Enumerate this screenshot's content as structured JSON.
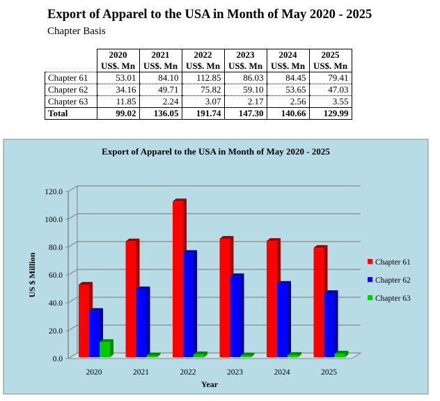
{
  "header": {
    "title": "Export of Apparel to the USA in Month of May 2020 - 2025",
    "subtitle": "Chapter Basis"
  },
  "table": {
    "years": [
      "2020",
      "2021",
      "2022",
      "2023",
      "2024",
      "2025"
    ],
    "unit": "US$. Mn",
    "rows": [
      {
        "label": "Chapter 61",
        "values": [
          "53.01",
          "84.10",
          "112.85",
          "86.03",
          "84.45",
          "79.41"
        ]
      },
      {
        "label": "Chapter 62",
        "values": [
          "34.16",
          "49.71",
          "75.82",
          "59.10",
          "53.65",
          "47.03"
        ]
      },
      {
        "label": "Chapter 63",
        "values": [
          "11.85",
          "2.24",
          "3.07",
          "2.17",
          "2.56",
          "3.55"
        ]
      },
      {
        "label": "Total",
        "values": [
          "99.02",
          "136.05",
          "191.74",
          "147.30",
          "140.66",
          "129.99"
        ]
      }
    ]
  },
  "chart_data": {
    "type": "bar",
    "title": "Export of Apparel to the USA in Month of May 2020 - 2025",
    "xlabel": "Year",
    "ylabel": "US $ Million",
    "ylim": [
      0,
      120
    ],
    "yticks": [
      "0.0",
      "20.0",
      "40.0",
      "60.0",
      "80.0",
      "100.0",
      "120.0"
    ],
    "categories": [
      "2020",
      "2021",
      "2022",
      "2023",
      "2024",
      "2025"
    ],
    "legend_position": "right",
    "series": [
      {
        "name": "Chapter 61",
        "color": "#ff0000",
        "side": "#a00000",
        "values": [
          53.01,
          84.1,
          112.85,
          86.03,
          84.45,
          79.41
        ]
      },
      {
        "name": "Chapter 62",
        "color": "#0000ff",
        "side": "#0000a0",
        "values": [
          34.16,
          49.71,
          75.82,
          59.1,
          53.65,
          47.03
        ]
      },
      {
        "name": "Chapter 63",
        "color": "#00cc00",
        "side": "#008800",
        "values": [
          11.85,
          2.24,
          3.07,
          2.17,
          2.56,
          3.55
        ]
      }
    ]
  }
}
